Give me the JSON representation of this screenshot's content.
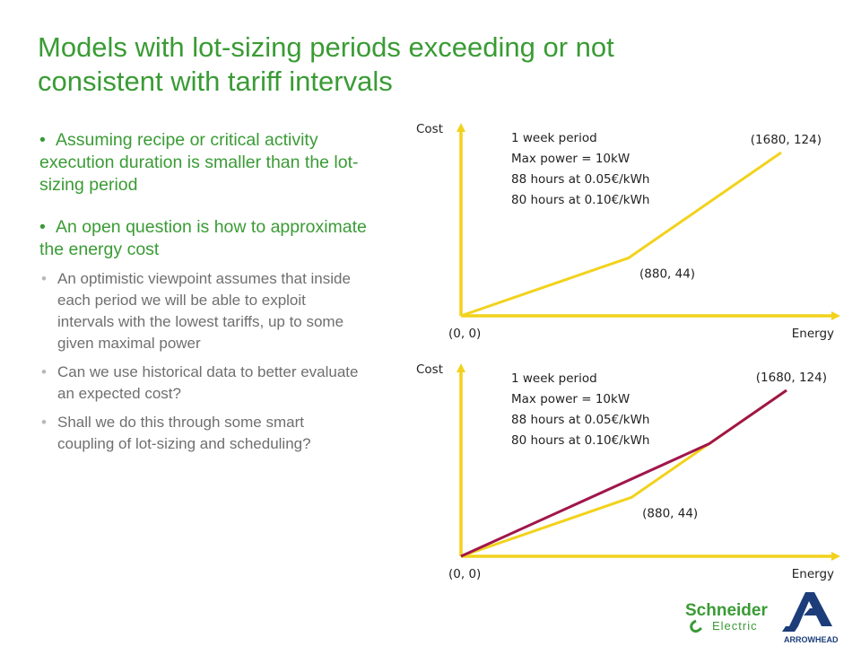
{
  "title": {
    "line1": "Models with lot-sizing periods exceeding or not",
    "line2": "consistent with tariff intervals"
  },
  "bullets": [
    {
      "text": "Assuming recipe or critical activity execution duration is smaller than the lot-sizing period",
      "level": 1
    },
    {
      "text": "An open question is how to approximate the energy cost",
      "level": 1,
      "children": [
        "An optimistic viewpoint assumes that inside each period we will be able to exploit intervals with the lowest tariffs, up to some given maximal power",
        "Can we use historical data to better evaluate an expected cost?",
        "Shall we do this through some smart coupling of lot-sizing and scheduling?"
      ]
    }
  ],
  "charts": [
    {
      "y_axis_label": "Cost",
      "x_axis_label": "Energy",
      "origin_label": "(0, 0)",
      "info_lines": [
        "1 week period",
        "Max power = 10kW",
        "88 hours at 0.05€/kWh",
        "80 hours at 0.10€/kWh"
      ],
      "points": [
        {
          "x": 0,
          "y": 0,
          "label": "(0, 0)"
        },
        {
          "x": 880,
          "y": 44,
          "label": "(880, 44)"
        },
        {
          "x": 1680,
          "y": 124,
          "label": "(1680, 124)"
        }
      ],
      "series": [
        {
          "points": [
            [
              0,
              0
            ],
            [
              880,
              44
            ],
            [
              1680,
              124
            ]
          ],
          "color": "#f2d21c"
        }
      ]
    },
    {
      "y_axis_label": "Cost",
      "x_axis_label": "Energy",
      "origin_label": "(0, 0)",
      "info_lines": [
        "1 week period",
        "Max power = 10kW",
        "88 hours at 0.05€/kWh",
        "80 hours at 0.10€/kWh"
      ],
      "points": [
        {
          "x": 0,
          "y": 0,
          "label": "(0, 0)"
        },
        {
          "x": 880,
          "y": 44,
          "label": "(880, 44)"
        },
        {
          "x": 1680,
          "y": 124,
          "label": "(1680, 124)"
        }
      ],
      "series": [
        {
          "points": [
            [
              0,
              0
            ],
            [
              880,
              44
            ],
            [
              1680,
              124
            ]
          ],
          "color": "#f2d21c"
        },
        {
          "points": [
            [
              0,
              0
            ],
            [
              1280,
              84
            ],
            [
              1680,
              124
            ]
          ],
          "color": "#a0164b"
        }
      ]
    }
  ],
  "colors": {
    "title": "#3a9b35",
    "axis": "#f2d21c",
    "alt_curve": "#a0164b",
    "text_gray": "#6f6f6f"
  },
  "logos": {
    "schneider": {
      "line1": "Schneider",
      "line2": "Electric"
    },
    "arrowhead": {
      "label": "ARROWHEAD"
    }
  }
}
